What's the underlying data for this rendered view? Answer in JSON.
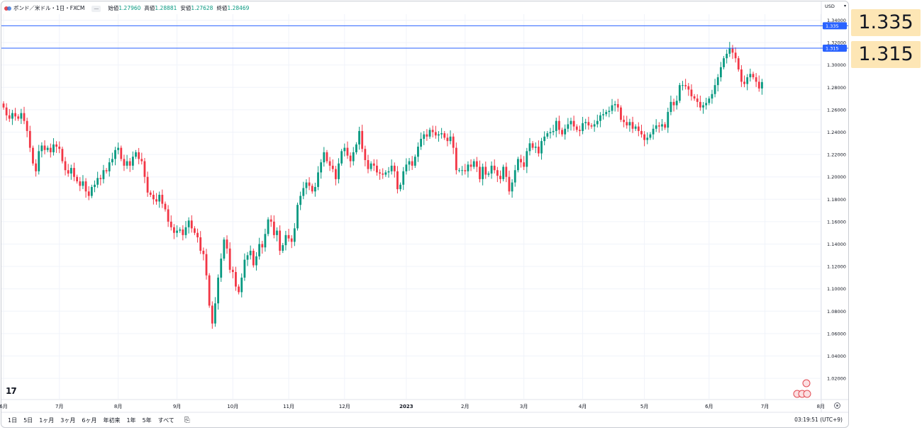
{
  "legend": {
    "symbol": "ポンド／米ドル・1日・FXCM",
    "collapse_label": "—",
    "open_label": "始値",
    "open_value": "1.27960",
    "high_label": "高値",
    "high_value": "1.28881",
    "low_label": "安値",
    "low_value": "1.27628",
    "close_label": "終値",
    "close_value": "1.28469"
  },
  "currency": {
    "label": "USD",
    "caret": "▾"
  },
  "colors": {
    "up": "#089981",
    "down": "#f23645",
    "hline": "#2962ff",
    "callout": "#fde6b5"
  },
  "hlines": [
    {
      "price": 1.335,
      "tag": "1.335",
      "callout": "1.335"
    },
    {
      "price": 1.315,
      "tag": "1.315",
      "callout": "1.315"
    }
  ],
  "logo": "17",
  "bottom": {
    "periods": [
      "1日",
      "5日",
      "1ヶ月",
      "3ヶ月",
      "6ヶ月",
      "年初来",
      "1年",
      "5年",
      "すべて"
    ],
    "clock": "03:19:51 (UTC+9)"
  },
  "chart_data": {
    "type": "candlestick",
    "title": "ポンド／米ドル・1日・FXCM",
    "ylim": [
      1.0,
      1.345
    ],
    "y_ticks": [
      "1.34000",
      "1.32000",
      "1.30000",
      "1.28000",
      "1.26000",
      "1.24000",
      "1.22000",
      "1.20000",
      "1.18000",
      "1.16000",
      "1.14000",
      "1.12000",
      "1.10000",
      "1.08000",
      "1.06000",
      "1.04000",
      "1.02000"
    ],
    "x_labels": [
      "6月",
      "7月",
      "8月",
      "9月",
      "10月",
      "11月",
      "12月",
      "2023",
      "2月",
      "3月",
      "4月",
      "5月",
      "6月",
      "7月",
      "8月"
    ],
    "x_label_bar_index": [
      0,
      19,
      39,
      59,
      78,
      97,
      116,
      137,
      157,
      177,
      197,
      218,
      240,
      259,
      278
    ],
    "grid": true,
    "closes": [
      1.262,
      1.255,
      1.252,
      1.257,
      1.254,
      1.252,
      1.257,
      1.25,
      1.241,
      1.226,
      1.212,
      1.205,
      1.223,
      1.228,
      1.224,
      1.226,
      1.222,
      1.229,
      1.227,
      1.225,
      1.214,
      1.206,
      1.203,
      1.208,
      1.2,
      1.196,
      1.192,
      1.196,
      1.187,
      1.183,
      1.191,
      1.193,
      1.199,
      1.198,
      1.206,
      1.205,
      1.213,
      1.216,
      1.224,
      1.226,
      1.216,
      1.21,
      1.214,
      1.21,
      1.218,
      1.222,
      1.216,
      1.214,
      1.2,
      1.186,
      1.184,
      1.18,
      1.178,
      1.184,
      1.176,
      1.171,
      1.16,
      1.155,
      1.15,
      1.152,
      1.153,
      1.148,
      1.155,
      1.161,
      1.154,
      1.15,
      1.146,
      1.134,
      1.131,
      1.112,
      1.085,
      1.069,
      1.087,
      1.11,
      1.127,
      1.144,
      1.136,
      1.117,
      1.115,
      1.102,
      1.097,
      1.11,
      1.126,
      1.13,
      1.134,
      1.121,
      1.129,
      1.14,
      1.137,
      1.149,
      1.162,
      1.16,
      1.148,
      1.152,
      1.134,
      1.139,
      1.148,
      1.145,
      1.142,
      1.154,
      1.175,
      1.183,
      1.19,
      1.195,
      1.192,
      1.187,
      1.191,
      1.204,
      1.213,
      1.222,
      1.214,
      1.21,
      1.207,
      1.198,
      1.212,
      1.223,
      1.226,
      1.219,
      1.214,
      1.222,
      1.229,
      1.241,
      1.225,
      1.215,
      1.207,
      1.212,
      1.21,
      1.204,
      1.203,
      1.202,
      1.204,
      1.205,
      1.21,
      1.205,
      1.189,
      1.193,
      1.205,
      1.211,
      1.214,
      1.21,
      1.218,
      1.227,
      1.234,
      1.238,
      1.236,
      1.242,
      1.24,
      1.237,
      1.238,
      1.239,
      1.235,
      1.232,
      1.236,
      1.226,
      1.206,
      1.206,
      1.206,
      1.205,
      1.211,
      1.209,
      1.214,
      1.209,
      1.198,
      1.209,
      1.202,
      1.203,
      1.21,
      1.206,
      1.201,
      1.198,
      1.209,
      1.2,
      1.187,
      1.195,
      1.206,
      1.216,
      1.213,
      1.209,
      1.223,
      1.23,
      1.226,
      1.227,
      1.221,
      1.232,
      1.236,
      1.239,
      1.24,
      1.241,
      1.25,
      1.242,
      1.238,
      1.243,
      1.247,
      1.25,
      1.245,
      1.242,
      1.241,
      1.248,
      1.249,
      1.246,
      1.245,
      1.247,
      1.25,
      1.255,
      1.256,
      1.258,
      1.259,
      1.264,
      1.265,
      1.262,
      1.251,
      1.249,
      1.246,
      1.249,
      1.243,
      1.245,
      1.241,
      1.238,
      1.233,
      1.235,
      1.238,
      1.243,
      1.246,
      1.245,
      1.247,
      1.244,
      1.258,
      1.267,
      1.264,
      1.268,
      1.282,
      1.282,
      1.281,
      1.278,
      1.272,
      1.27,
      1.267,
      1.262,
      1.264,
      1.266,
      1.27,
      1.274,
      1.282,
      1.289,
      1.298,
      1.306,
      1.31,
      1.315,
      1.311,
      1.306,
      1.296,
      1.285,
      1.283,
      1.289,
      1.292,
      1.289,
      1.285,
      1.279,
      1.2847
    ]
  }
}
